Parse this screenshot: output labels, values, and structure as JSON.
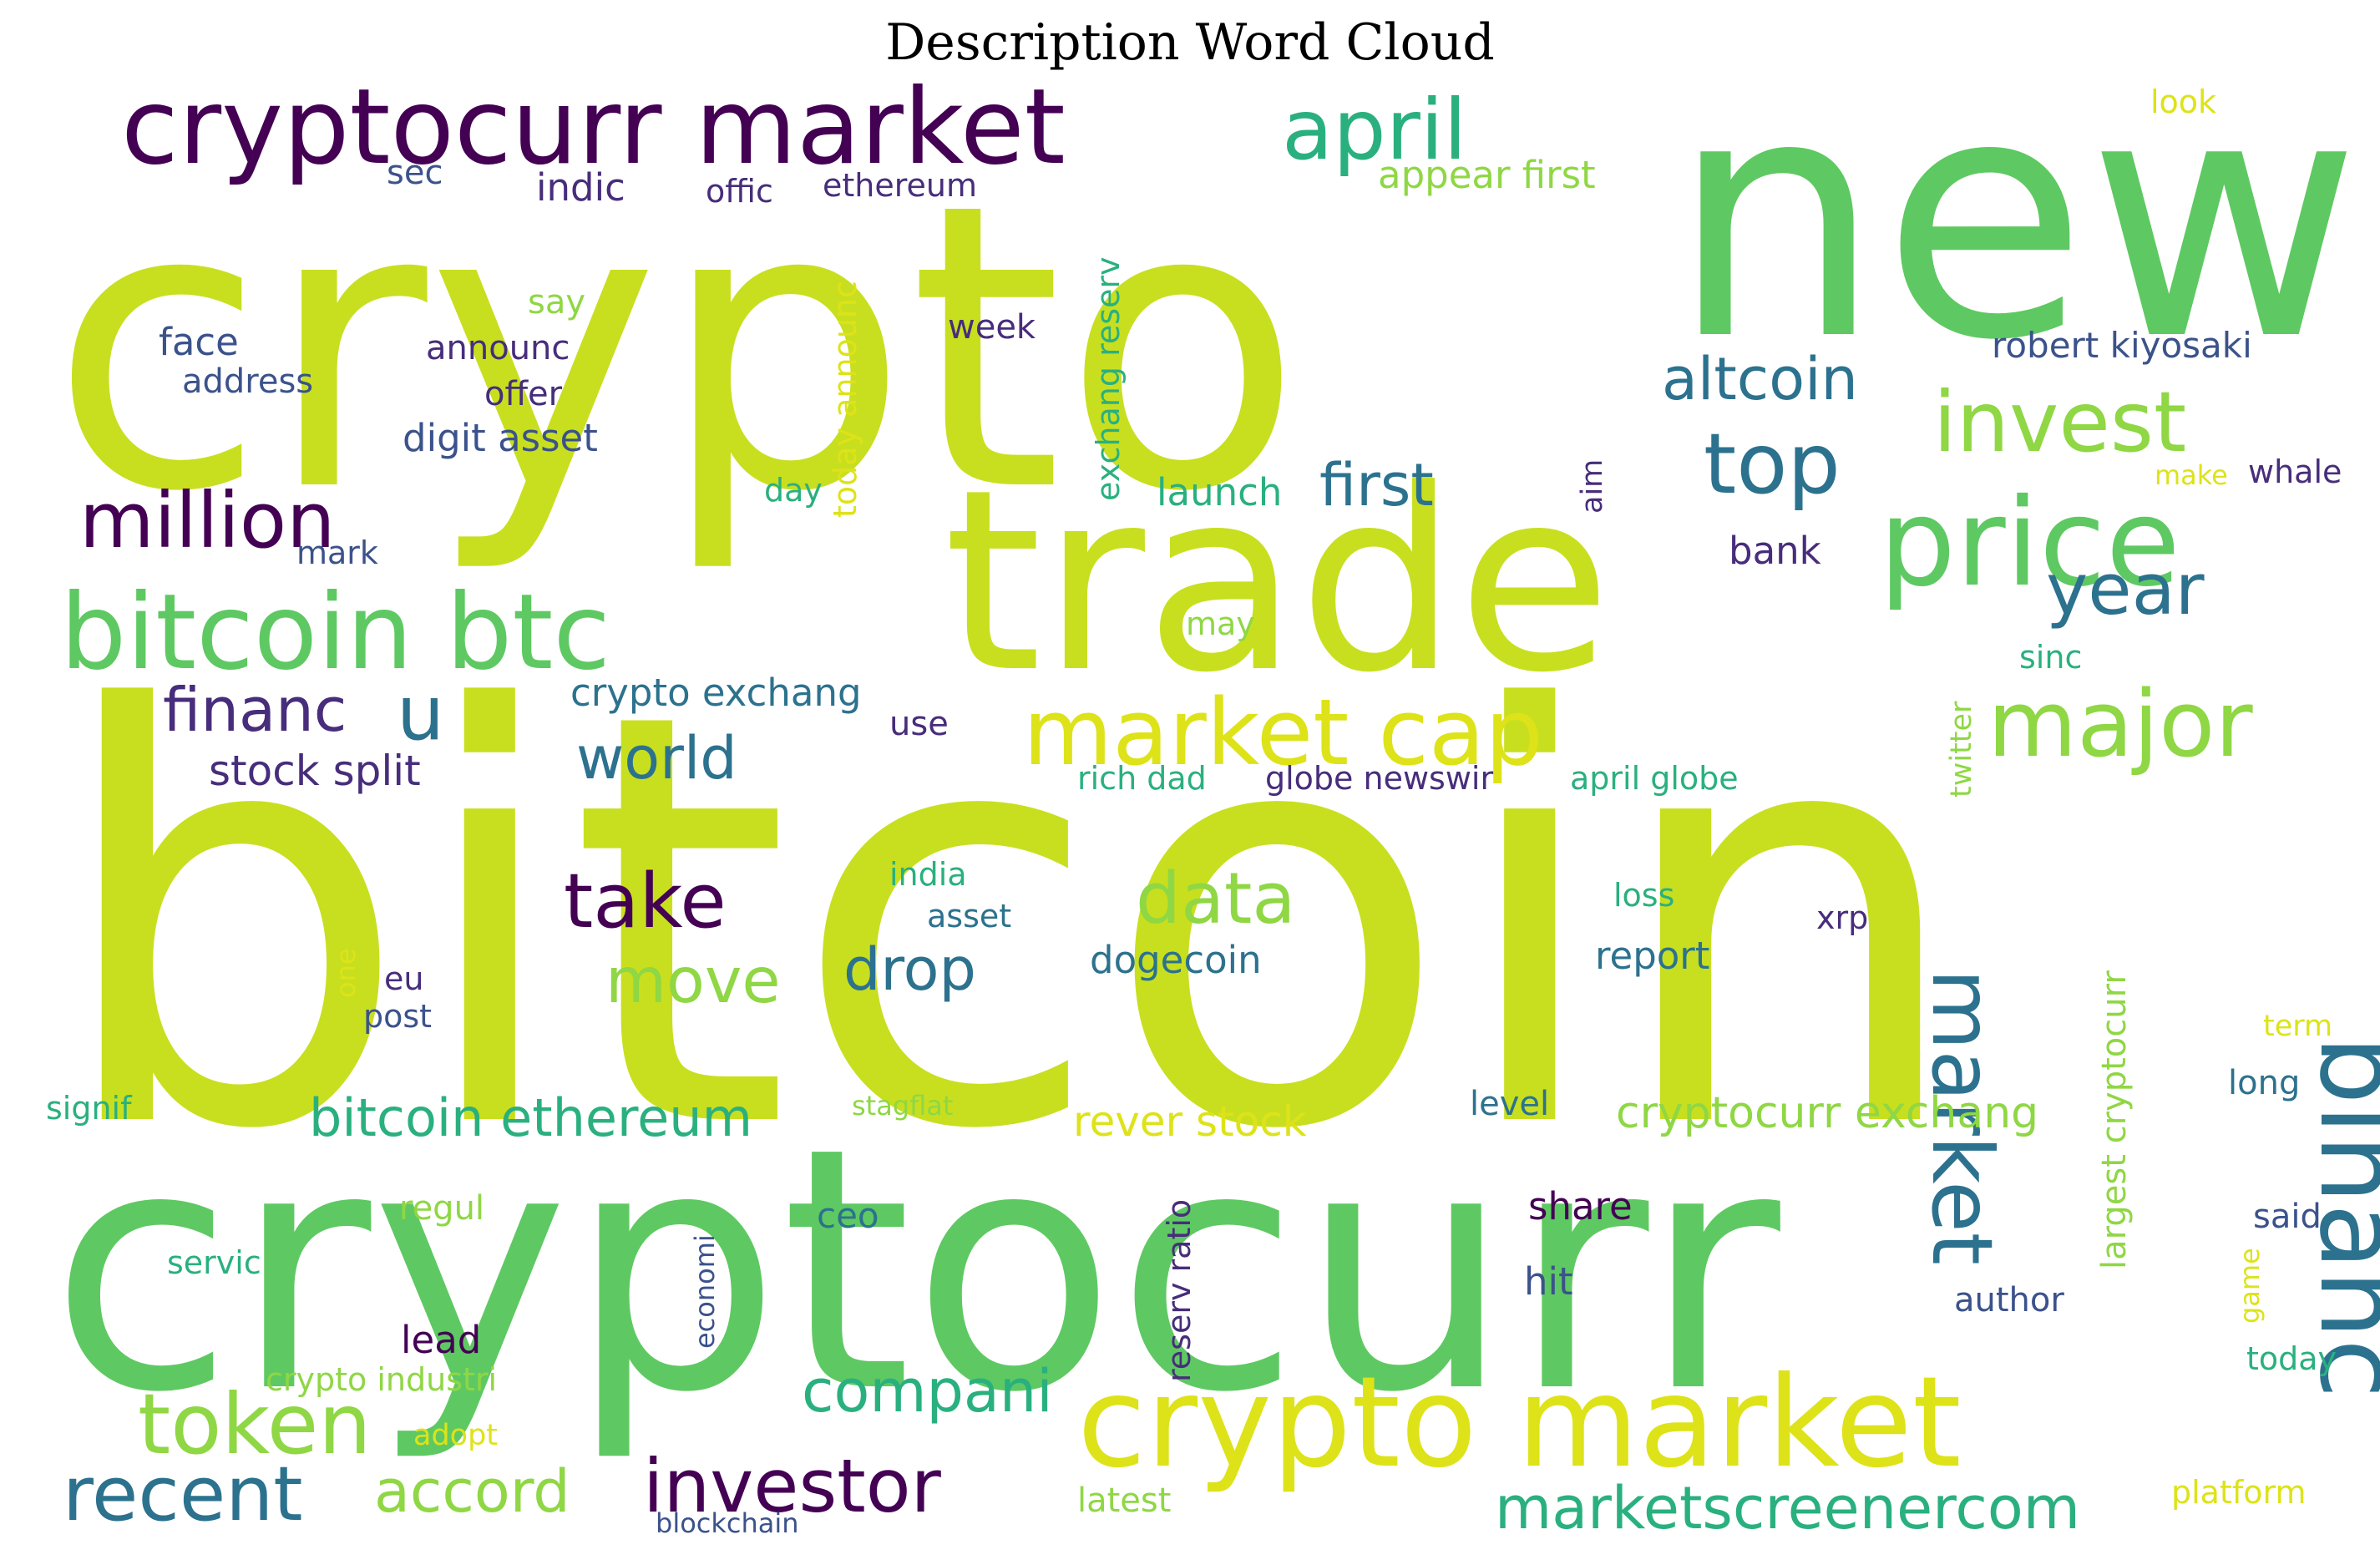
{
  "title": "Description Word Cloud",
  "colors": {
    "lime": "#c8df1f",
    "green": "#5ec962",
    "lightgreen": "#8fd744",
    "teal": "#21918c",
    "aqua": "#2ab07f",
    "blue": "#3b528b",
    "steel": "#2c728e",
    "purple": "#440154",
    "violet": "#472d7b",
    "yellow": "#dde318"
  },
  "words": [
    {
      "text": "crypto",
      "color": "lime"
    },
    {
      "text": "new",
      "color": "green"
    },
    {
      "text": "trade",
      "color": "lime"
    },
    {
      "text": "bitcoin",
      "color": "lime"
    },
    {
      "text": "cryptocurr",
      "color": "green"
    },
    {
      "text": "cryptocurr market",
      "color": "purple"
    },
    {
      "text": "april",
      "color": "aqua"
    },
    {
      "text": "bitcoin btc",
      "color": "green"
    },
    {
      "text": "million",
      "color": "purple"
    },
    {
      "text": "price",
      "color": "green"
    },
    {
      "text": "invest",
      "color": "lightgreen"
    },
    {
      "text": "altcoin",
      "color": "steel"
    },
    {
      "text": "top",
      "color": "steel"
    },
    {
      "text": "year",
      "color": "steel"
    },
    {
      "text": "binanc",
      "color": "steel"
    },
    {
      "text": "market",
      "color": "steel"
    },
    {
      "text": "major",
      "color": "lightgreen"
    },
    {
      "text": "market cap",
      "color": "yellow"
    },
    {
      "text": "u",
      "color": "steel"
    },
    {
      "text": "financ",
      "color": "violet"
    },
    {
      "text": "world",
      "color": "steel"
    },
    {
      "text": "stock split",
      "color": "violet"
    },
    {
      "text": "take",
      "color": "purple"
    },
    {
      "text": "data",
      "color": "lightgreen"
    },
    {
      "text": "move",
      "color": "lightgreen"
    },
    {
      "text": "drop",
      "color": "steel"
    },
    {
      "text": "dogecoin",
      "color": "steel"
    },
    {
      "text": "report",
      "color": "steel"
    },
    {
      "text": "bitcoin ethereum",
      "color": "aqua"
    },
    {
      "text": "rever stock",
      "color": "yellow"
    },
    {
      "text": "cryptocurr exchang",
      "color": "lightgreen"
    },
    {
      "text": "crypto market",
      "color": "yellow"
    },
    {
      "text": "token",
      "color": "lightgreen"
    },
    {
      "text": "recent",
      "color": "steel"
    },
    {
      "text": "accord",
      "color": "lightgreen"
    },
    {
      "text": "investor",
      "color": "purple"
    },
    {
      "text": "compani",
      "color": "aqua"
    },
    {
      "text": "marketscreenercom",
      "color": "aqua"
    },
    {
      "text": "first",
      "color": "steel"
    },
    {
      "text": "launch",
      "color": "aqua"
    },
    {
      "text": "appear first",
      "color": "lightgreen"
    },
    {
      "text": "face",
      "color": "blue"
    },
    {
      "text": "address",
      "color": "blue"
    },
    {
      "text": "announc",
      "color": "violet"
    },
    {
      "text": "offer",
      "color": "violet"
    },
    {
      "text": "digit asset",
      "color": "blue"
    },
    {
      "text": "say",
      "color": "lightgreen"
    },
    {
      "text": "sec",
      "color": "blue"
    },
    {
      "text": "indic",
      "color": "violet"
    },
    {
      "text": "offic",
      "color": "violet"
    },
    {
      "text": "ethereum",
      "color": "violet"
    },
    {
      "text": "week",
      "color": "violet"
    },
    {
      "text": "day",
      "color": "aqua"
    },
    {
      "text": "today announc",
      "color": "yellow"
    },
    {
      "text": "exchang reserv",
      "color": "aqua"
    },
    {
      "text": "mark",
      "color": "blue"
    },
    {
      "text": "look",
      "color": "yellow"
    },
    {
      "text": "robert kiyosaki",
      "color": "blue"
    },
    {
      "text": "aim",
      "color": "violet"
    },
    {
      "text": "make",
      "color": "yellow"
    },
    {
      "text": "whale",
      "color": "violet"
    },
    {
      "text": "bank",
      "color": "violet"
    },
    {
      "text": "may",
      "color": "lightgreen"
    },
    {
      "text": "sinc",
      "color": "aqua"
    },
    {
      "text": "twitter",
      "color": "lightgreen"
    },
    {
      "text": "crypto exchang",
      "color": "steel"
    },
    {
      "text": "use",
      "color": "violet"
    },
    {
      "text": "rich dad",
      "color": "aqua"
    },
    {
      "text": "globe newswir",
      "color": "violet"
    },
    {
      "text": "april globe",
      "color": "aqua"
    },
    {
      "text": "india",
      "color": "aqua"
    },
    {
      "text": "asset",
      "color": "steel"
    },
    {
      "text": "loss",
      "color": "aqua"
    },
    {
      "text": "xrp",
      "color": "violet"
    },
    {
      "text": "one",
      "color": "yellow"
    },
    {
      "text": "eu",
      "color": "violet"
    },
    {
      "text": "post",
      "color": "blue"
    },
    {
      "text": "largest cryptocurr",
      "color": "lightgreen"
    },
    {
      "text": "term",
      "color": "yellow"
    },
    {
      "text": "long",
      "color": "steel"
    },
    {
      "text": "signif",
      "color": "aqua"
    },
    {
      "text": "stagflat",
      "color": "lightgreen"
    },
    {
      "text": "level",
      "color": "steel"
    },
    {
      "text": "regul",
      "color": "lightgreen"
    },
    {
      "text": "ceo",
      "color": "steel"
    },
    {
      "text": "reserv ratio",
      "color": "violet"
    },
    {
      "text": "share",
      "color": "purple"
    },
    {
      "text": "said",
      "color": "blue"
    },
    {
      "text": "servic",
      "color": "aqua"
    },
    {
      "text": "economi",
      "color": "blue"
    },
    {
      "text": "hit",
      "color": "blue"
    },
    {
      "text": "game",
      "color": "yellow"
    },
    {
      "text": "author",
      "color": "blue"
    },
    {
      "text": "lead",
      "color": "purple"
    },
    {
      "text": "today",
      "color": "aqua"
    },
    {
      "text": "crypto industri",
      "color": "lightgreen"
    },
    {
      "text": "adopt",
      "color": "yellow"
    },
    {
      "text": "latest",
      "color": "lightgreen"
    },
    {
      "text": "blockchain",
      "color": "blue"
    },
    {
      "text": "platform",
      "color": "yellow"
    }
  ]
}
